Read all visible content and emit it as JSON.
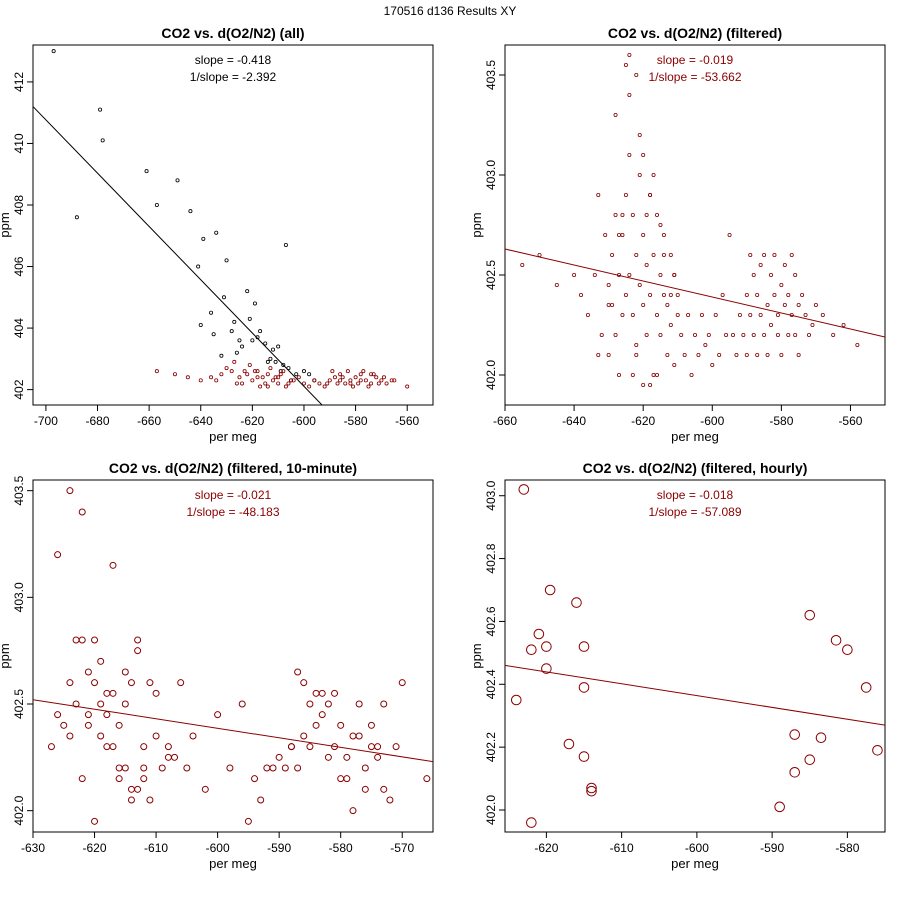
{
  "page_title": "170516   d136   Results XY",
  "colors": {
    "black": "#000000",
    "red": "#8b0000"
  },
  "chart_data": [
    {
      "type": "scatter",
      "title": "CO2 vs. d(O2/N2) (all)",
      "xlabel": "per meg",
      "ylabel": "ppm",
      "xlim": [
        -705,
        -550
      ],
      "ylim": [
        401.5,
        413.2
      ],
      "xticks": [
        -700,
        -680,
        -660,
        -640,
        -620,
        -600,
        -580,
        -560
      ],
      "yticks": [
        402,
        404,
        406,
        408,
        410,
        412
      ],
      "annotations": {
        "slope": "slope = -0.418",
        "inv_slope": "1/slope = -2.392"
      },
      "fit_line": {
        "slope": -0.418,
        "x1": -705,
        "y1": 411.2,
        "x2": -593,
        "y2": 401.5,
        "color": "#000000"
      },
      "point_size": "small",
      "series": [
        {
          "name": "all",
          "color": "#000000",
          "x": [
            -697,
            -688,
            -679,
            -678,
            -661,
            -657,
            -649,
            -644,
            -641,
            -639,
            -636,
            -634,
            -631,
            -630,
            -627,
            -625,
            -622,
            -621,
            -619,
            -617,
            -615,
            -613,
            -611,
            -609,
            -607,
            -605,
            -603,
            -635,
            -628,
            -624,
            -618,
            -612,
            -608,
            -640,
            -632,
            -626,
            -620,
            -614,
            -610,
            -606,
            -600,
            -598,
            -596
          ],
          "y": [
            413.0,
            407.6,
            411.1,
            410.1,
            409.1,
            408.0,
            408.8,
            407.8,
            406.0,
            406.9,
            404.5,
            407.1,
            405.0,
            406.2,
            404.2,
            403.6,
            405.2,
            404.3,
            404.8,
            403.9,
            403.5,
            403.0,
            402.9,
            402.6,
            406.7,
            402.3,
            402.5,
            403.8,
            403.9,
            403.4,
            403.7,
            403.3,
            402.8,
            404.1,
            403.1,
            403.2,
            403.6,
            402.9,
            403.4,
            402.7,
            402.6,
            402.5,
            402.3
          ]
        },
        {
          "name": "filtered",
          "color": "#8b0000",
          "x": [
            -657,
            -650,
            -645,
            -640,
            -636,
            -632,
            -628,
            -625,
            -622,
            -620,
            -618,
            -616,
            -614,
            -612,
            -610,
            -608,
            -606,
            -604,
            -602,
            -600,
            -598,
            -596,
            -594,
            -592,
            -590,
            -588,
            -586,
            -584,
            -582,
            -580,
            -578,
            -576,
            -574,
            -572,
            -570,
            -568,
            -565,
            -560,
            -630,
            -627,
            -624,
            -621,
            -619,
            -617,
            -615,
            -613,
            -611,
            -609,
            -607,
            -605,
            -589,
            -587,
            -585,
            -583,
            -581,
            -579,
            -577,
            -575,
            -573,
            -571,
            -569,
            -566,
            -634,
            -626,
            -623,
            -618,
            -614,
            -610,
            -591,
            -586,
            -582,
            -578,
            -574
          ],
          "y": [
            402.6,
            402.5,
            402.4,
            402.3,
            402.4,
            402.5,
            402.6,
            402.4,
            402.5,
            402.3,
            402.6,
            402.4,
            402.5,
            402.3,
            402.4,
            402.6,
            402.2,
            402.3,
            402.4,
            402.2,
            402.1,
            402.3,
            402.2,
            402.1,
            402.3,
            402.4,
            402.5,
            402.2,
            402.3,
            402.4,
            402.5,
            402.3,
            402.2,
            402.4,
            402.3,
            402.2,
            402.3,
            402.1,
            402.7,
            402.9,
            402.2,
            402.8,
            402.6,
            402.1,
            402.2,
            402.7,
            402.4,
            402.5,
            402.1,
            402.3,
            402.6,
            402.2,
            402.4,
            402.6,
            402.1,
            402.2,
            402.6,
            402.1,
            402.5,
            402.2,
            402.4,
            402.3,
            402.3,
            402.2,
            402.6,
            402.4,
            402.1,
            402.2,
            402.2,
            402.3,
            402.2,
            402.3,
            402.5
          ]
        }
      ]
    },
    {
      "type": "scatter",
      "title": "CO2 vs. d(O2/N2) (filtered)",
      "xlabel": "per meg",
      "ylabel": "ppm",
      "xlim": [
        -660,
        -550
      ],
      "ylim": [
        401.85,
        403.65
      ],
      "xticks": [
        -660,
        -640,
        -620,
        -600,
        -580,
        -560
      ],
      "yticks": [
        402.0,
        402.5,
        403.0,
        403.5
      ],
      "annotations": {
        "slope": "slope = -0.019",
        "inv_slope": "1/slope = -53.662"
      },
      "fit_line": {
        "slope": -0.019,
        "x1": -660,
        "y1": 402.63,
        "x2": -550,
        "y2": 402.19,
        "color": "#8b0000"
      },
      "point_size": "small",
      "series": [
        {
          "name": "filtered",
          "color": "#8b0000",
          "x": [
            -655,
            -650,
            -645,
            -640,
            -638,
            -636,
            -634,
            -633,
            -632,
            -631,
            -630,
            -630,
            -629,
            -629,
            -628,
            -628,
            -627,
            -627,
            -626,
            -626,
            -625,
            -625,
            -624,
            -624,
            -623,
            -623,
            -622,
            -622,
            -621,
            -621,
            -620,
            -620,
            -619,
            -619,
            -618,
            -618,
            -617,
            -617,
            -616,
            -616,
            -615,
            -615,
            -614,
            -614,
            -613,
            -613,
            -612,
            -612,
            -611,
            -611,
            -610,
            -610,
            -609,
            -608,
            -607,
            -606,
            -605,
            -604,
            -603,
            -602,
            -601,
            -600,
            -599,
            -598,
            -597,
            -596,
            -595,
            -594,
            -593,
            -592,
            -591,
            -590,
            -590,
            -589,
            -589,
            -588,
            -588,
            -587,
            -587,
            -586,
            -586,
            -585,
            -585,
            -584,
            -584,
            -583,
            -583,
            -582,
            -582,
            -581,
            -581,
            -580,
            -580,
            -579,
            -579,
            -578,
            -578,
            -577,
            -577,
            -576,
            -576,
            -575,
            -575,
            -574,
            -573,
            -572,
            -571,
            -570,
            -568,
            -565,
            -562,
            -558,
            -628,
            -624,
            -622,
            -621,
            -620,
            -619,
            -625,
            -623,
            -618,
            -616,
            -626,
            -620,
            -617,
            -624,
            -615,
            -612,
            -630,
            -627,
            -614,
            -633,
            -618,
            -622,
            -611
          ],
          "y": [
            402.55,
            402.6,
            402.45,
            402.5,
            402.4,
            402.3,
            402.5,
            402.9,
            402.2,
            402.7,
            402.45,
            402.1,
            402.6,
            402.35,
            402.8,
            402.2,
            402.5,
            402.0,
            402.7,
            402.3,
            402.9,
            402.4,
            403.1,
            402.5,
            402.3,
            402.8,
            402.6,
            402.1,
            402.45,
            403.0,
            402.35,
            402.7,
            402.2,
            402.55,
            402.9,
            402.4,
            402.0,
            402.6,
            402.3,
            402.8,
            402.5,
            402.2,
            402.4,
            402.7,
            402.1,
            402.35,
            402.6,
            402.25,
            402.5,
            402.05,
            402.3,
            402.4,
            402.2,
            402.1,
            402.3,
            402.0,
            402.2,
            402.1,
            402.3,
            402.15,
            402.2,
            402.05,
            402.3,
            402.1,
            402.4,
            402.2,
            402.7,
            402.2,
            402.1,
            402.3,
            402.2,
            402.4,
            402.1,
            402.3,
            402.6,
            402.2,
            402.5,
            402.1,
            402.4,
            402.3,
            402.55,
            402.2,
            402.6,
            402.35,
            402.1,
            402.5,
            402.25,
            402.4,
            402.6,
            402.2,
            402.3,
            402.45,
            402.1,
            402.35,
            402.55,
            402.2,
            402.4,
            402.3,
            402.6,
            402.2,
            402.5,
            402.35,
            402.1,
            402.4,
            402.3,
            402.2,
            402.25,
            402.35,
            402.3,
            402.2,
            402.25,
            402.15,
            403.3,
            403.4,
            403.5,
            403.2,
            403.1,
            402.8,
            403.55,
            402.0,
            402.9,
            402.0,
            402.8,
            401.95,
            403.0,
            403.6,
            402.75,
            402.4,
            402.35,
            402.7,
            402.6,
            402.1,
            401.95,
            402.15,
            402.5
          ]
        }
      ]
    },
    {
      "type": "scatter",
      "title": "CO2 vs. d(O2/N2) (filtered, 10-minute)",
      "xlabel": "per meg",
      "ylabel": "ppm",
      "xlim": [
        -630,
        -565
      ],
      "ylim": [
        401.9,
        403.55
      ],
      "xticks": [
        -630,
        -620,
        -610,
        -600,
        -590,
        -580,
        -570
      ],
      "yticks": [
        402.0,
        402.5,
        403.0,
        403.5
      ],
      "annotations": {
        "slope": "slope = -0.021",
        "inv_slope": "1/slope = -48.183"
      },
      "fit_line": {
        "slope": -0.021,
        "x1": -630,
        "y1": 402.52,
        "x2": -565,
        "y2": 402.23,
        "color": "#8b0000"
      },
      "point_size": "medium",
      "series": [
        {
          "name": "10-minute",
          "color": "#8b0000",
          "x": [
            -627,
            -626,
            -624,
            -623,
            -622,
            -621,
            -620,
            -619,
            -618,
            -617,
            -616,
            -615,
            -614,
            -613,
            -612,
            -611,
            -610,
            -609,
            -608,
            -607,
            -625,
            -624,
            -622,
            -620,
            -619,
            -618,
            -617,
            -616,
            -615,
            -614,
            -613,
            -612,
            -611,
            -621,
            -620,
            -619,
            -618,
            -617,
            -616,
            -615,
            -614,
            -613,
            -612,
            -610,
            -608,
            -626,
            -624,
            -623,
            -622,
            -621,
            -606,
            -605,
            -604,
            -602,
            -600,
            -598,
            -596,
            -595,
            -594,
            -593,
            -592,
            -591,
            -590,
            -589,
            -588,
            -587,
            -586,
            -585,
            -584,
            -583,
            -582,
            -581,
            -580,
            -579,
            -578,
            -577,
            -576,
            -575,
            -574,
            -573,
            -572,
            -571,
            -570,
            -587,
            -586,
            -584,
            -582,
            -580,
            -578,
            -576,
            -574,
            -583,
            -581,
            -579,
            -577,
            -575,
            -573,
            -588,
            -585,
            -566
          ],
          "y": [
            402.3,
            403.2,
            402.6,
            402.5,
            402.8,
            402.4,
            402.6,
            402.5,
            402.3,
            402.55,
            402.4,
            402.2,
            402.6,
            402.1,
            402.3,
            402.05,
            402.55,
            402.2,
            402.3,
            402.25,
            402.4,
            403.5,
            403.4,
            402.8,
            402.7,
            402.45,
            403.15,
            402.15,
            402.65,
            402.1,
            402.75,
            402.2,
            402.6,
            402.45,
            401.95,
            402.35,
            402.55,
            402.3,
            402.2,
            402.5,
            402.05,
            402.8,
            402.15,
            402.35,
            402.25,
            402.45,
            402.35,
            402.8,
            402.15,
            402.65,
            402.6,
            402.2,
            402.35,
            402.1,
            402.45,
            402.2,
            402.5,
            401.95,
            402.15,
            402.05,
            402.2,
            402.2,
            402.25,
            402.2,
            402.3,
            402.2,
            402.35,
            402.5,
            402.4,
            402.55,
            402.25,
            402.3,
            402.4,
            402.15,
            402.0,
            402.5,
            402.1,
            402.4,
            402.3,
            402.5,
            402.05,
            402.3,
            402.6,
            402.65,
            402.6,
            402.55,
            402.5,
            402.15,
            402.35,
            402.2,
            402.25,
            402.45,
            402.55,
            402.25,
            402.35,
            402.3,
            402.1,
            402.3,
            402.3,
            402.15
          ]
        }
      ]
    },
    {
      "type": "scatter",
      "title": "CO2 vs. d(O2/N2) (filtered, hourly)",
      "xlabel": "per meg",
      "ylabel": "ppm",
      "xlim": [
        -625.5,
        -575
      ],
      "ylim": [
        401.93,
        403.05
      ],
      "xticks": [
        -620,
        -610,
        -600,
        -590,
        -580
      ],
      "yticks": [
        402.0,
        402.2,
        402.4,
        402.6,
        402.8,
        403.0
      ],
      "annotations": {
        "slope": "slope = -0.018",
        "inv_slope": "1/slope = -57.089"
      },
      "fit_line": {
        "slope": -0.018,
        "x1": -625.5,
        "y1": 402.46,
        "x2": -575,
        "y2": 402.27,
        "color": "#8b0000"
      },
      "point_size": "large",
      "series": [
        {
          "name": "hourly",
          "color": "#8b0000",
          "x": [
            -624,
            -623,
            -622,
            -622,
            -621,
            -620,
            -620,
            -619.5,
            -617,
            -616,
            -615,
            -615,
            -615,
            -614,
            -614,
            -589,
            -587,
            -587,
            -585,
            -585,
            -583.5,
            -581.5,
            -580,
            -577.5,
            -576
          ],
          "y": [
            402.35,
            403.02,
            402.51,
            401.96,
            402.56,
            402.45,
            402.52,
            402.7,
            402.21,
            402.66,
            402.52,
            402.39,
            402.17,
            402.07,
            402.06,
            402.01,
            402.24,
            402.12,
            402.62,
            402.16,
            402.23,
            402.54,
            402.51,
            402.39,
            402.19
          ]
        }
      ]
    }
  ]
}
